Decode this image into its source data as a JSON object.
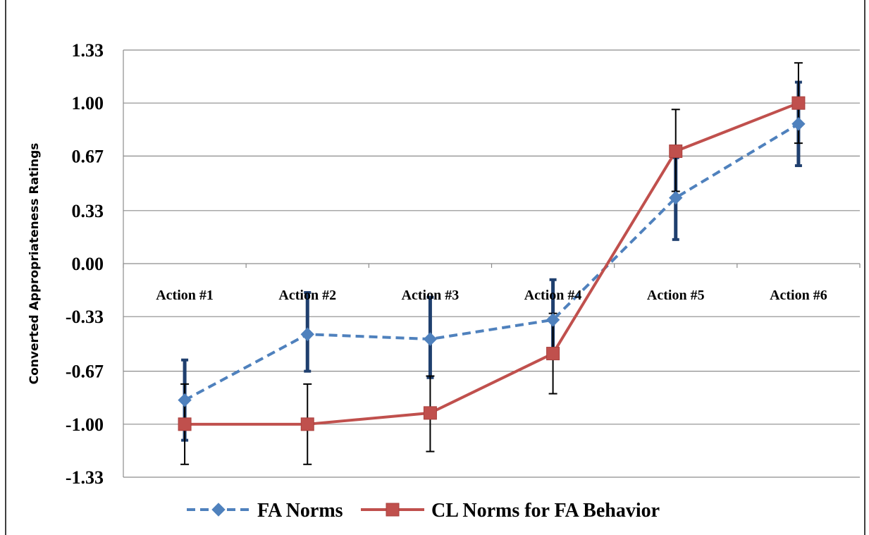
{
  "chart_data": {
    "type": "line",
    "title": "",
    "xlabel": "",
    "ylabel": "Converted Appropriateness Ratings",
    "categories": [
      "Action #1",
      "Action #2",
      "Action #3",
      "Action #4",
      "Action #5",
      "Action #6"
    ],
    "y_ticks": [
      "1.33",
      "1.00",
      "0.67",
      "0.33",
      "0.00",
      "-0.33",
      "-0.67",
      "-1.00",
      "-1.33"
    ],
    "ylim": [
      -1.33,
      1.33
    ],
    "grid": true,
    "legend_position": "bottom",
    "series": [
      {
        "name": "FA Norms",
        "color": "#4F81BD",
        "error_color": "#1F3F6E",
        "line_style": "dashed",
        "marker": "diamond",
        "values": [
          -0.85,
          -0.44,
          -0.47,
          -0.35,
          0.41,
          0.87
        ],
        "error_low": [
          -1.1,
          -0.67,
          -0.71,
          -0.55,
          0.15,
          0.61
        ],
        "error_high": [
          -0.6,
          -0.18,
          -0.21,
          -0.1,
          0.66,
          1.13
        ]
      },
      {
        "name": "CL Norms for FA Behavior",
        "color": "#C0504D",
        "error_color": "#000000",
        "line_style": "solid",
        "marker": "square",
        "values": [
          -1.0,
          -1.0,
          -0.93,
          -0.56,
          0.7,
          1.0
        ],
        "error_low": [
          -1.25,
          -1.25,
          -1.17,
          -0.81,
          0.45,
          0.75
        ],
        "error_high": [
          -0.75,
          -0.75,
          -0.7,
          -0.31,
          0.96,
          1.25
        ]
      }
    ]
  }
}
